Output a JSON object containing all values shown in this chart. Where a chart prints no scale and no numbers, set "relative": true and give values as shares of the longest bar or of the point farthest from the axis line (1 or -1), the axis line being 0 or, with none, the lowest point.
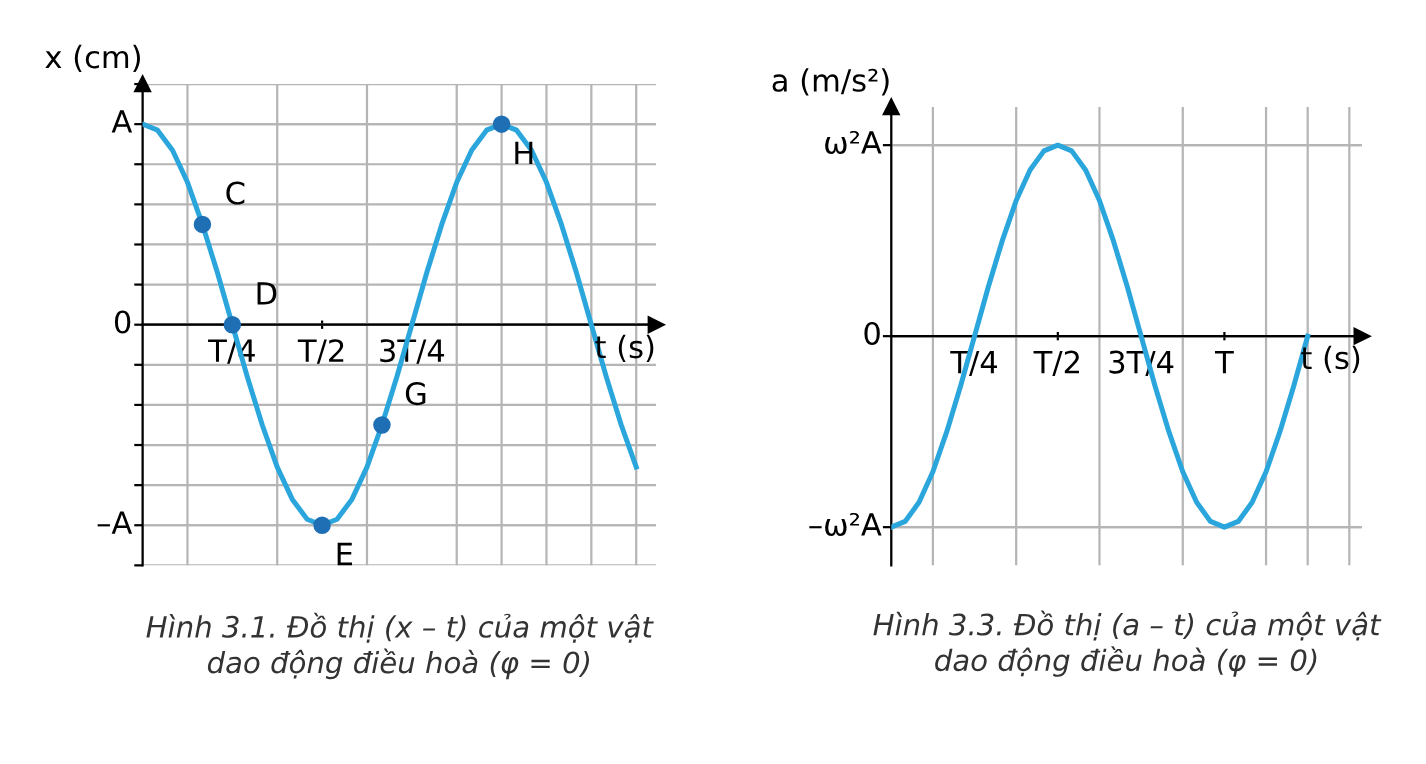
{
  "chart_data": [
    {
      "type": "line",
      "title": "Hình 3.1. Đồ thị (x – t) của một vật\ndao động điều hoà (φ = 0)",
      "xlabel": "t (s)",
      "ylabel": "x (cm)",
      "relative": true,
      "categories": [
        null,
        null,
        null,
        null,
        null,
        null,
        "T/4",
        null,
        null,
        null,
        null,
        null,
        "T/2",
        null,
        null,
        null,
        null,
        null,
        "3T/4",
        null,
        null,
        null,
        null,
        null,
        null,
        null,
        null,
        null,
        null,
        null,
        null,
        null,
        null,
        null
      ],
      "series": [
        {
          "type": "line",
          "color": "#2ba6dc",
          "values": [
            1,
            0.97,
            0.87,
            0.71,
            0.5,
            0.26,
            0,
            -0.26,
            -0.5,
            -0.71,
            -0.87,
            -0.97,
            -1,
            -0.97,
            -0.87,
            -0.71,
            -0.5,
            -0.26,
            0,
            0.26,
            0.5,
            0.71,
            0.87,
            0.97,
            1,
            0.97,
            0.87,
            0.71,
            0.5,
            0.26,
            0,
            -0.26,
            -0.5,
            -0.71
          ]
        },
        {
          "type": "scatter",
          "color": "#1f6fb5",
          "marker": "circle",
          "values": [
            null,
            null,
            null,
            null,
            0.5,
            null,
            0,
            null,
            null,
            null,
            null,
            null,
            -1,
            null,
            null,
            null,
            -0.5,
            null,
            null,
            null,
            null,
            null,
            null,
            null,
            1,
            null,
            null,
            null,
            null,
            null,
            null,
            null,
            null,
            null
          ]
        }
      ],
      "annotations": [
        "C",
        "D",
        "E",
        "G",
        "H"
      ],
      "ref_lines": [
        {
          "axis": "y",
          "value": 1,
          "label": "A"
        },
        {
          "axis": "y",
          "value": 0,
          "label": "0"
        },
        {
          "axis": "y",
          "value": -1,
          "label": "–A"
        }
      ],
      "grid": true,
      "legend": false
    },
    {
      "type": "line",
      "title": "Hình 3.3. Đồ thị (a – t) của một vật\ndao động điều hoà (φ = 0)",
      "xlabel": "t (s)",
      "ylabel": "a (m/s²)",
      "relative": true,
      "categories": [
        null,
        null,
        null,
        null,
        null,
        null,
        "T/4",
        null,
        null,
        null,
        null,
        null,
        "T/2",
        null,
        null,
        null,
        null,
        null,
        "3T/4",
        null,
        null,
        null,
        null,
        null,
        "T",
        null,
        null,
        null,
        null,
        null,
        null
      ],
      "series": [
        {
          "type": "line",
          "color": "#2ba6dc",
          "values": [
            -1,
            -0.97,
            -0.87,
            -0.71,
            -0.5,
            -0.26,
            0,
            0.26,
            0.5,
            0.71,
            0.87,
            0.97,
            1,
            0.97,
            0.87,
            0.71,
            0.5,
            0.26,
            0,
            -0.26,
            -0.5,
            -0.71,
            -0.87,
            -0.97,
            -1,
            -0.97,
            -0.87,
            -0.71,
            -0.5,
            -0.26,
            0
          ]
        }
      ],
      "ref_lines": [
        {
          "axis": "y",
          "value": 1,
          "label": "ω²A"
        },
        {
          "axis": "y",
          "value": 0,
          "label": "0"
        },
        {
          "axis": "y",
          "value": -1,
          "label": "–ω²A"
        }
      ],
      "grid": true,
      "legend": false
    }
  ]
}
